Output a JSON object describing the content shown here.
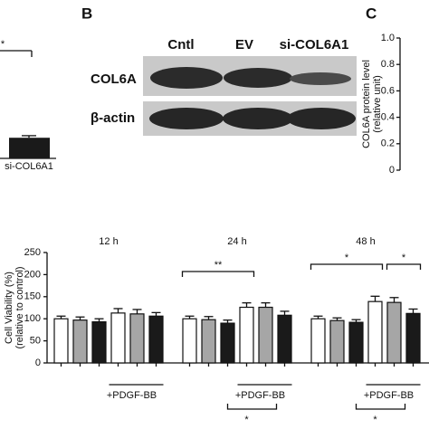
{
  "chart_data": [
    {
      "type": "bar",
      "categories": [
        "si-COL6A1"
      ],
      "values": [
        0.3
      ],
      "errors": [
        0.03
      ],
      "color": "#1a1a1a",
      "annotations": [
        {
          "label": "*"
        }
      ]
    },
    {
      "type": "bar",
      "panel": "C",
      "ylabel": [
        "COL6A protein level",
        "(relative unit)"
      ],
      "ylim": [
        0,
        1
      ],
      "yticks": [
        0,
        0.2,
        0.4,
        0.6,
        0.8,
        {
          "value": 1,
          "label": "1.0"
        }
      ]
    },
    {
      "type": "grouped-bar",
      "ylabel": [
        "Cell Viability (%)",
        "(relative to control)"
      ],
      "groups": [
        "12 h",
        "24 h",
        "48 h"
      ],
      "treatment_label": "+PDGF-BB",
      "ylim": [
        0,
        250
      ],
      "yticks": [
        0,
        50,
        100,
        150,
        200,
        250
      ],
      "series": [
        {
          "color": "#ffffff",
          "values": [
            100,
            113,
            100,
            126,
            100,
            139
          ],
          "errors": [
            6,
            10,
            6,
            10,
            6,
            12
          ]
        },
        {
          "color": "#a6a6a6",
          "values": [
            97,
            111,
            98,
            126,
            96,
            137
          ],
          "errors": [
            7,
            10,
            7,
            10,
            6,
            11
          ]
        },
        {
          "color": "#1a1a1a",
          "values": [
            93,
            106,
            90,
            108,
            92,
            112
          ],
          "errors": [
            7,
            8,
            7,
            9,
            6,
            10
          ]
        }
      ],
      "annotations": [
        {
          "label": "**",
          "group": 1,
          "bars": [
            0,
            3
          ],
          "side": "above"
        },
        {
          "label": "*",
          "group": 2,
          "bars": [
            0,
            3
          ],
          "side": "above"
        },
        {
          "label": "*",
          "group": 2,
          "bars": [
            4,
            5
          ],
          "side": "above"
        },
        {
          "label": "*",
          "group": 1,
          "bars": [
            2,
            4
          ],
          "side": "below"
        },
        {
          "label": "*",
          "group": 2,
          "bars": [
            2,
            4
          ],
          "side": "below"
        }
      ]
    }
  ],
  "blot": {
    "panel": "B",
    "lanes": [
      "Cntl",
      "EV",
      "si-COL6A1"
    ],
    "rows": [
      "COL6A",
      "β-actin"
    ]
  }
}
